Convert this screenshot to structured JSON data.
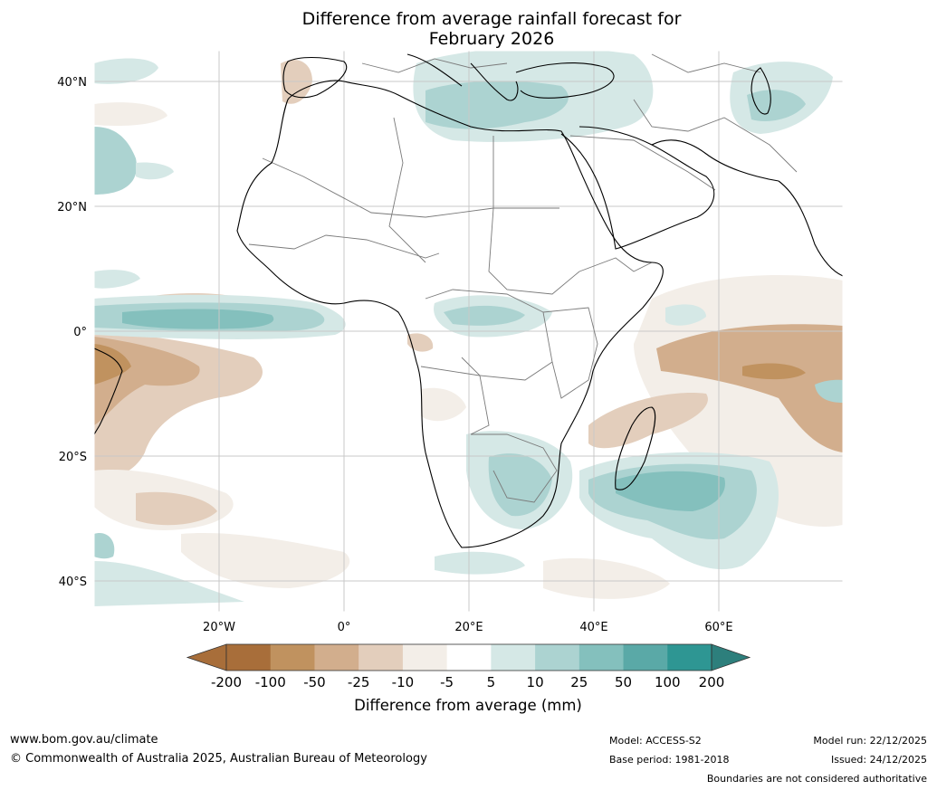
{
  "title": {
    "line1": "Difference from average rainfall forecast for",
    "line2": "February 2026"
  },
  "axes": {
    "lat_labels": [
      "40°N",
      "20°N",
      "0°",
      "20°S",
      "40°S"
    ],
    "lon_labels": [
      "20°W",
      "0°",
      "20°E",
      "40°E",
      "60°E"
    ]
  },
  "colorbar": {
    "title": "Difference from average (mm)",
    "ticks": [
      "-200",
      "-100",
      "-50",
      "-25",
      "-10",
      "-5",
      "5",
      "10",
      "25",
      "50",
      "100",
      "200"
    ],
    "colors": [
      "#a86e3a",
      "#c0925f",
      "#d2ae8d",
      "#e3cebc",
      "#f3eee8",
      "#ffffff",
      "#d5e8e6",
      "#acd3d1",
      "#84c0bd",
      "#5aa9a7",
      "#2e9693"
    ],
    "arrow_low_color": "#a86e3a",
    "arrow_high_color": "#2d7f7c"
  },
  "footer": {
    "website": "www.bom.gov.au/climate",
    "copyright": "© Commonwealth of Australia 2025, Australian Bureau of Meteorology",
    "model": "Model: ACCESS-S2",
    "base_period": "Base period: 1981-2018",
    "model_run": "Model run: 22/12/2025",
    "issued": "Issued: 24/12/2025",
    "disclaimer": "Boundaries are not considered authoritative"
  }
}
